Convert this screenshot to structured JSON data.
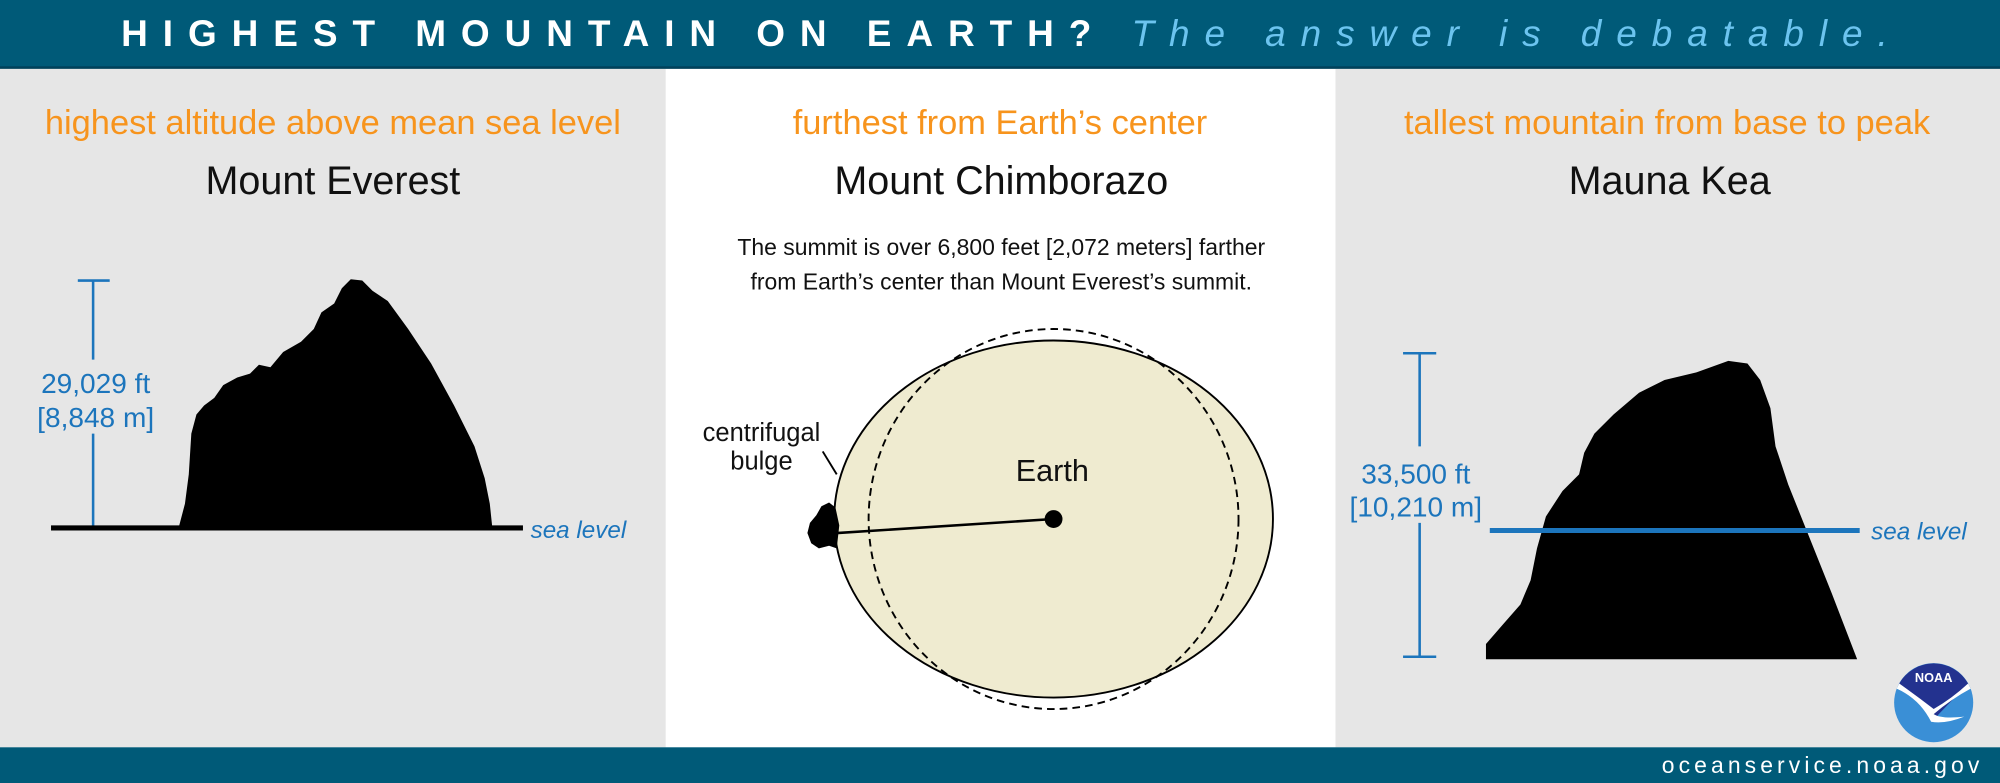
{
  "header": {
    "title": "HIGHEST MOUNTAIN ON EARTH?",
    "subtitle": "The answer is debatable."
  },
  "panels": [
    {
      "criterion": "highest altitude above mean sea level",
      "mountain": "Mount Everest",
      "height_ft": "29,029 ft",
      "height_m": "[8,848 m]",
      "sea_level_label": "sea level"
    },
    {
      "criterion": "furthest from Earth’s center",
      "mountain": "Mount Chimborazo",
      "description_line1": "The summit is over 6,800 feet [2,072 meters] farther",
      "description_line2": "from Earth’s center than Mount Everest’s summit.",
      "bulge_label_line1": "centrifugal",
      "bulge_label_line2": "bulge",
      "earth_label": "Earth"
    },
    {
      "criterion": "tallest mountain from base to peak",
      "mountain": "Mauna Kea",
      "height_ft": "33,500 ft",
      "height_m": "[10,210 m]",
      "sea_level_label": "sea level"
    }
  ],
  "logo": {
    "text": "NOAA"
  },
  "footer": {
    "url": "oceanservice.noaa.gov"
  },
  "colors": {
    "header": "#005a78",
    "accent_orange": "#f7941d",
    "accent_blue": "#1c75bc",
    "subtitle_blue": "#6cc4ef",
    "earth_fill": "#efebd0"
  }
}
